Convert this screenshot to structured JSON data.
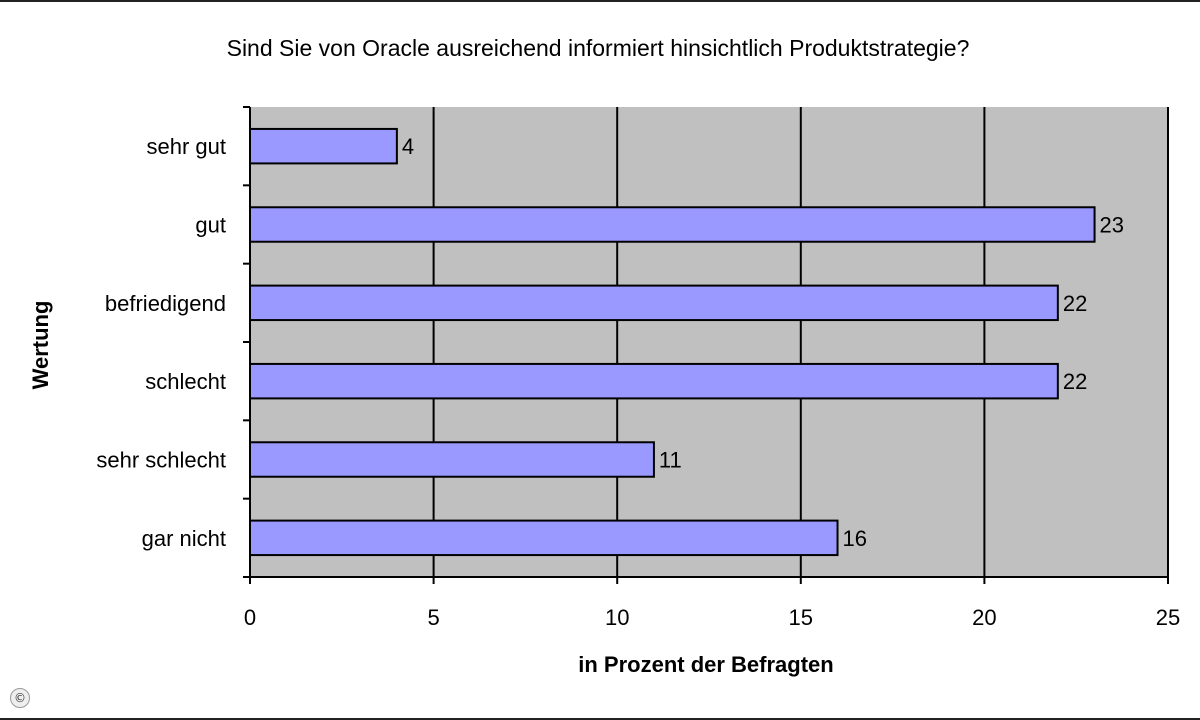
{
  "chart_data": {
    "type": "bar",
    "orientation": "horizontal",
    "title": "Sind Sie von Oracle ausreichend informiert hinsichtlich Produktstrategie?",
    "xlabel": "in Prozent der Befragten",
    "ylabel": "Wertung",
    "categories": [
      "sehr gut",
      "gut",
      "befriedigend",
      "schlecht",
      "sehr schlecht",
      "gar nicht"
    ],
    "values": [
      4,
      23,
      22,
      22,
      11,
      16
    ],
    "data_labels": [
      "4",
      "23",
      "22",
      "22",
      "11",
      "16"
    ],
    "xlim": [
      0,
      25
    ],
    "x_ticks": [
      "0",
      "5",
      "10",
      "15",
      "20",
      "25"
    ],
    "grid": "vertical",
    "legend": "none",
    "colors": {
      "bar": "#9999ff",
      "plot_bg": "#c0c0c0",
      "bar_border": "#000000"
    }
  },
  "footer": {
    "copyright_icon": "copyright-icon",
    "copyright_glyph": "©"
  }
}
